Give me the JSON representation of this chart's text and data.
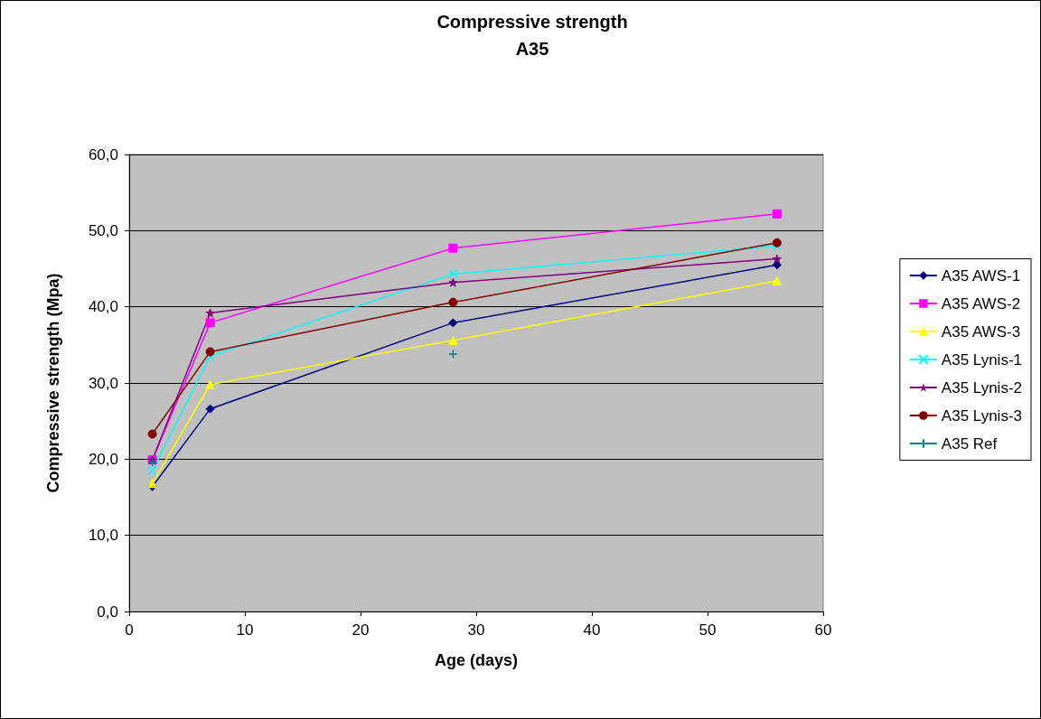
{
  "chart_data": {
    "type": "line",
    "title": "Compressive strength",
    "subtitle": "A35",
    "xlabel": "Age (days)",
    "ylabel": "Compressive strength (Mpa)",
    "x": [
      2,
      7,
      28,
      56
    ],
    "series": [
      {
        "name": "A35 AWS-1",
        "color": "#000080",
        "marker": "diamond",
        "values": [
          16.4,
          26.6,
          37.9,
          45.5
        ]
      },
      {
        "name": "A35 AWS-2",
        "color": "#ff00ff",
        "marker": "square",
        "values": [
          19.9,
          37.9,
          47.7,
          52.2
        ]
      },
      {
        "name": "A35 AWS-3",
        "color": "#ffff00",
        "marker": "triangle",
        "values": [
          16.8,
          29.8,
          35.6,
          43.4
        ]
      },
      {
        "name": "A35 Lynis-1",
        "color": "#00ffff",
        "marker": "cross",
        "values": [
          18.5,
          33.5,
          44.3,
          48.0
        ]
      },
      {
        "name": "A35 Lynis-2",
        "color": "#800080",
        "marker": "star",
        "values": [
          19.9,
          39.2,
          43.2,
          46.3
        ]
      },
      {
        "name": "A35 Lynis-3",
        "color": "#800000",
        "marker": "circle",
        "values": [
          23.3,
          34.1,
          40.6,
          48.4
        ]
      },
      {
        "name": "A35 Ref",
        "color": "#008080",
        "marker": "plus",
        "values": [
          19.6,
          null,
          33.8,
          null
        ]
      }
    ],
    "xlim": [
      0,
      60
    ],
    "xticks": [
      0,
      10,
      20,
      30,
      40,
      50,
      60
    ],
    "ylim": [
      0,
      60
    ],
    "yticks": [
      {
        "value": 0,
        "label": "0,0"
      },
      {
        "value": 10,
        "label": "10,0"
      },
      {
        "value": 20,
        "label": "20,0"
      },
      {
        "value": 30,
        "label": "30,0"
      },
      {
        "value": 40,
        "label": "40,0"
      },
      {
        "value": 50,
        "label": "50,0"
      },
      {
        "value": 60,
        "label": "60,0"
      }
    ],
    "grid": "y",
    "legend": "right"
  }
}
